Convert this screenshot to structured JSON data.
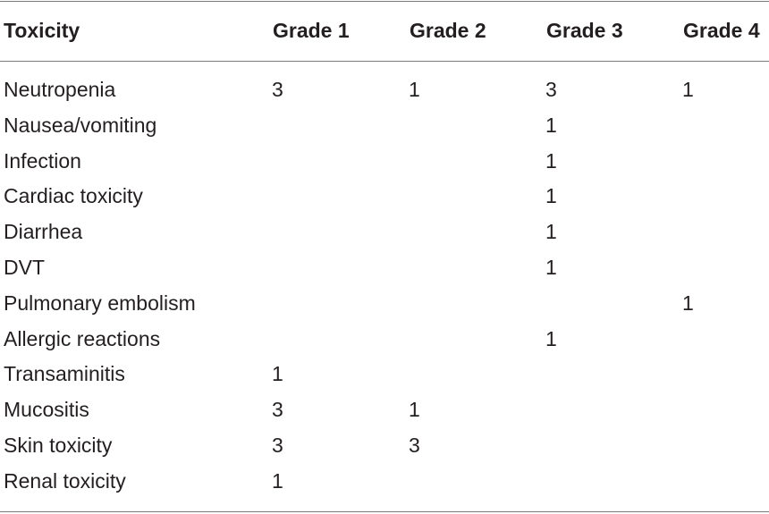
{
  "table": {
    "headers": [
      "Toxicity",
      "Grade 1",
      "Grade 2",
      "Grade 3",
      "Grade 4"
    ],
    "rows": [
      [
        "Neutropenia",
        "3",
        "1",
        "3",
        "1"
      ],
      [
        "Nausea/vomiting",
        "",
        "",
        "1",
        ""
      ],
      [
        "Infection",
        "",
        "",
        "1",
        ""
      ],
      [
        "Cardiac toxicity",
        "",
        "",
        "1",
        ""
      ],
      [
        "Diarrhea",
        "",
        "",
        "1",
        ""
      ],
      [
        "DVT",
        "",
        "",
        "1",
        ""
      ],
      [
        "Pulmonary embolism",
        "",
        "",
        "",
        "1"
      ],
      [
        "Allergic reactions",
        "",
        "",
        "1",
        ""
      ],
      [
        "Transaminitis",
        "1",
        "",
        "",
        ""
      ],
      [
        "Mucositis",
        "3",
        "1",
        "",
        ""
      ],
      [
        "Skin toxicity",
        "3",
        "3",
        "",
        ""
      ],
      [
        "Renal toxicity",
        "1",
        "",
        "",
        ""
      ]
    ]
  }
}
